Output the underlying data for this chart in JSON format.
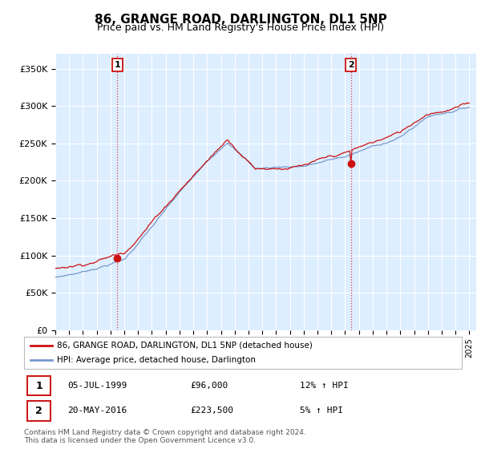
{
  "title": "86, GRANGE ROAD, DARLINGTON, DL1 5NP",
  "subtitle": "Price paid vs. HM Land Registry's House Price Index (HPI)",
  "ylim": [
    0,
    370000
  ],
  "yticks": [
    0,
    50000,
    100000,
    150000,
    200000,
    250000,
    300000,
    350000
  ],
  "ytick_labels": [
    "£0",
    "£50K",
    "£100K",
    "£150K",
    "£200K",
    "£250K",
    "£300K",
    "£350K"
  ],
  "background_color": "#ffffff",
  "chart_bg_color": "#ddeeff",
  "grid_color": "#ffffff",
  "sale1_date": 1999.51,
  "sale1_price": 96000,
  "sale1_label": "1",
  "sale2_date": 2016.38,
  "sale2_price": 223500,
  "sale2_label": "2",
  "line1_color": "#cc1111",
  "line2_color": "#7799cc",
  "legend_label1": "86, GRANGE ROAD, DARLINGTON, DL1 5NP (detached house)",
  "legend_label2": "HPI: Average price, detached house, Darlington",
  "table_row1": [
    "1",
    "05-JUL-1999",
    "£96,000",
    "12% ↑ HPI"
  ],
  "table_row2": [
    "2",
    "20-MAY-2016",
    "£223,500",
    "5% ↑ HPI"
  ],
  "footnote": "Contains HM Land Registry data © Crown copyright and database right 2024.\nThis data is licensed under the Open Government Licence v3.0.",
  "title_fontsize": 11,
  "subtitle_fontsize": 9,
  "xstart": 1995,
  "xend": 2025
}
